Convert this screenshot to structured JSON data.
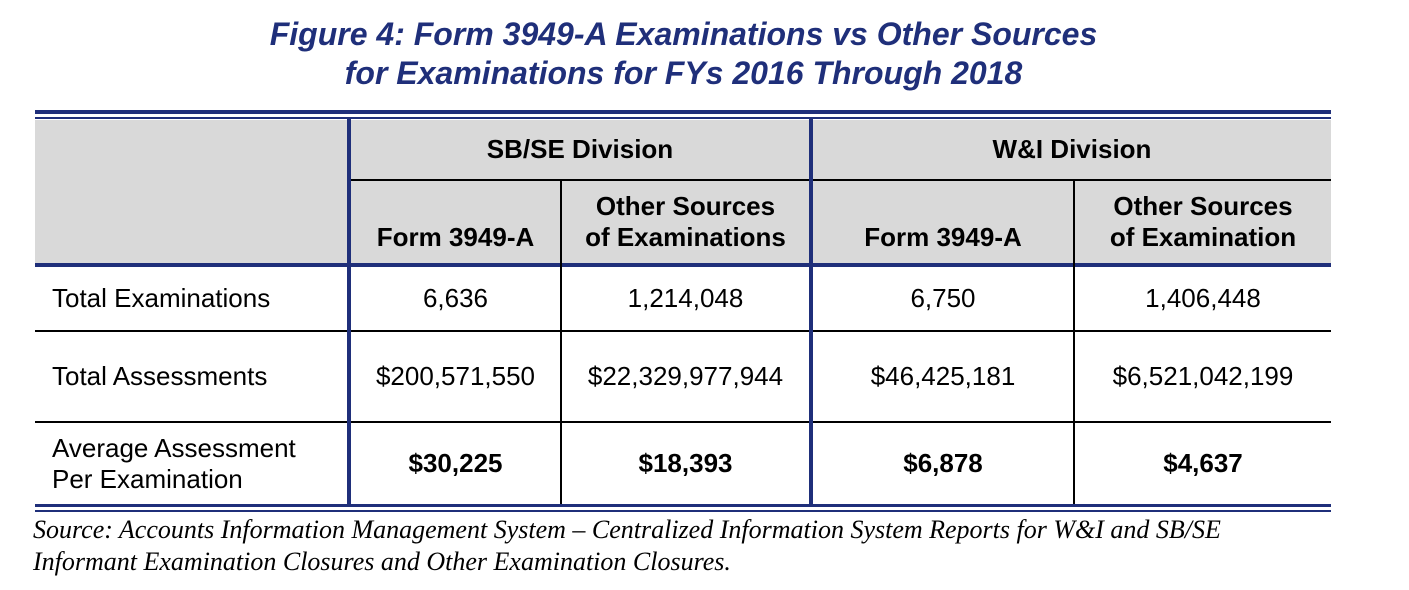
{
  "figure": {
    "title_line1": "Figure 4:  Form 3949-A Examinations vs Other Sources",
    "title_line2": "for Examinations for FYs 2016 Through 2018"
  },
  "table": {
    "divisions": [
      "SB/SE Division",
      "W&I Division"
    ],
    "columns": [
      "Form 3949-A",
      "Other Sources of Examinations",
      "Form 3949-A",
      "Other Sources of Examination"
    ],
    "column_lines": [
      [
        "",
        "Form 3949-A"
      ],
      [
        "Other Sources",
        "of Examinations"
      ],
      [
        "",
        "Form 3949-A"
      ],
      [
        "Other Sources",
        "of Examination"
      ]
    ],
    "rows": [
      {
        "label": "Total Examinations",
        "values": [
          "6,636",
          "1,214,048",
          "6,750",
          "1,406,448"
        ]
      },
      {
        "label": "Total Assessments",
        "values": [
          "$200,571,550",
          "$22,329,977,944",
          "$46,425,181",
          "$6,521,042,199"
        ]
      },
      {
        "label": "Average Assessment Per Examination",
        "label_lines": [
          "Average Assessment",
          "Per Examination"
        ],
        "values": [
          "$30,225",
          "$18,393",
          "$6,878",
          "$4,637"
        ]
      }
    ]
  },
  "source": {
    "line1": "Source:  Accounts Information Management System – Centralized Information System Reports for W&I and SB/SE",
    "line2": "Informant Examination Closures and Other Examination Closures."
  },
  "colors": {
    "rule": "#1f2f7a",
    "title": "#1f2f7a",
    "header_background": "#d9d9d9"
  }
}
